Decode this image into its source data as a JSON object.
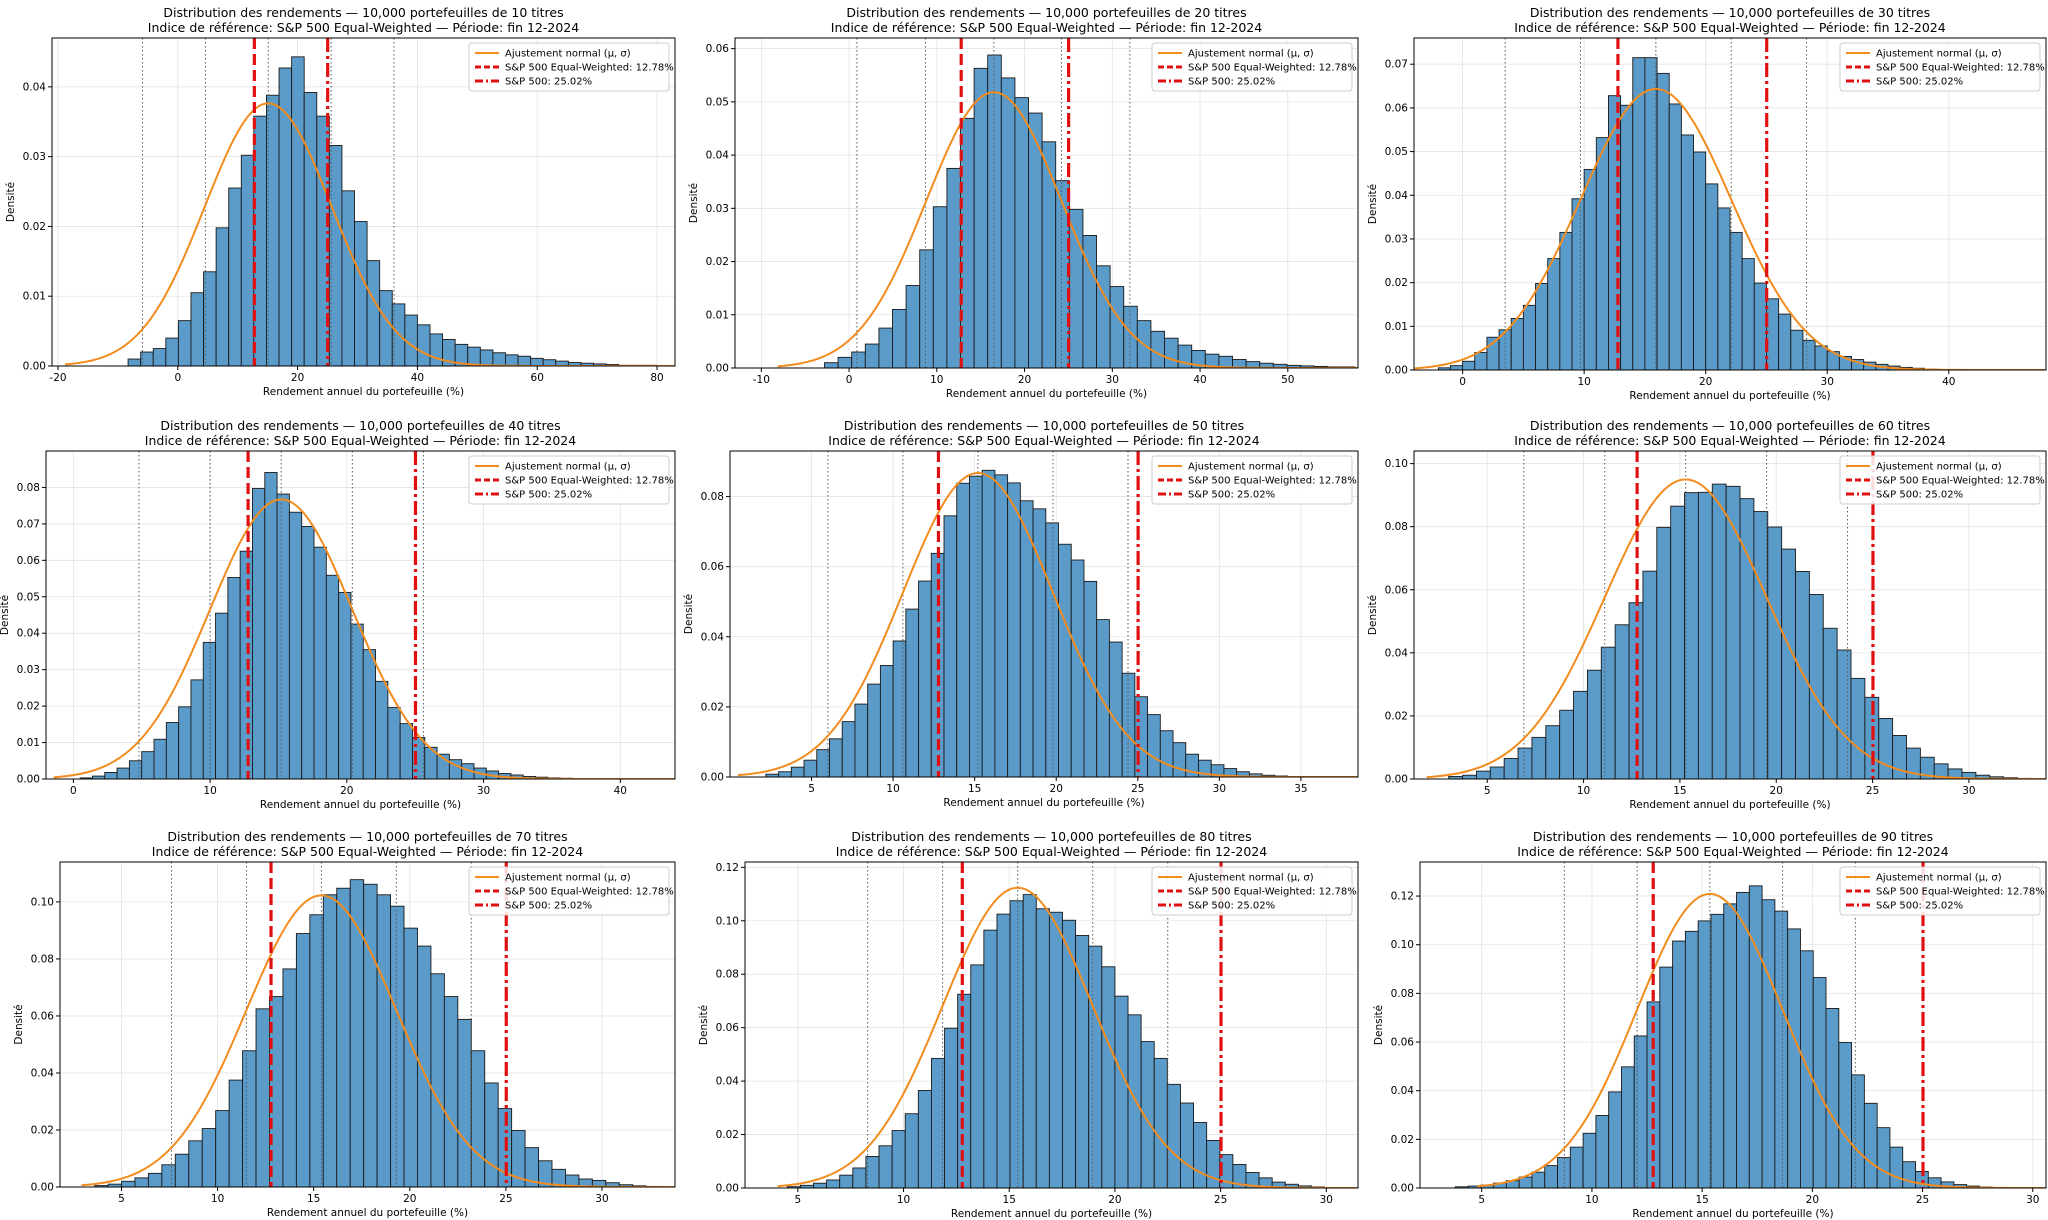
{
  "chart_data": [
    {
      "type": "bar",
      "title": "Distribution des rendements — 10,000 portefeuilles de 10 titres",
      "subtitle": "Indice de référence: S&P 500 Equal-Weighted — Période: fin 12-2024",
      "xlabel": "Rendement annuel du portefeuille (%)",
      "ylabel": "Densité",
      "xlim": [
        -21,
        83
      ],
      "ylim": [
        0,
        0.047
      ],
      "xticks": [
        -20,
        0,
        20,
        40,
        60,
        80
      ],
      "yticks": [
        0,
        0.01,
        0.02,
        0.03,
        0.04
      ],
      "grid": true,
      "legend_position": "top-right",
      "hist": {
        "bin_start": -8.3,
        "bin_width": 2.1,
        "values": [
          0.001,
          0.002,
          0.0025,
          0.004,
          0.0065,
          0.0105,
          0.0135,
          0.0198,
          0.0255,
          0.0302,
          0.0358,
          0.0388,
          0.0427,
          0.0443,
          0.0392,
          0.0358,
          0.0316,
          0.0251,
          0.0207,
          0.0151,
          0.0108,
          0.0089,
          0.0073,
          0.0059,
          0.0046,
          0.0038,
          0.0031,
          0.0027,
          0.0023,
          0.0019,
          0.0016,
          0.0014,
          0.0011,
          0.0009,
          0.0007,
          0.0005,
          0.0004,
          0.0003,
          0.0002,
          0.0001,
          0.0001,
          0.0001
        ]
      },
      "normal_fit": {
        "mu": 15.1,
        "sigma": 10.6
      },
      "sigma_lines": [
        -5.9,
        4.6,
        15.1,
        25.6,
        36.1
      ],
      "reference_lines": [
        12.78,
        25.02
      ],
      "legend": [
        "Ajustement normal (μ, σ)",
        "S&P 500 Equal-Weighted: 12.78%",
        "S&P 500: 25.02%"
      ]
    },
    {
      "type": "bar",
      "title": "Distribution des rendements — 10,000 portefeuilles de 20 titres",
      "subtitle": "Indice de référence: S&P 500 Equal-Weighted — Période: fin 12-2024",
      "xlabel": "Rendement annuel du portefeuille (%)",
      "ylabel": "Densité",
      "xlim": [
        -13,
        58
      ],
      "ylim": [
        0,
        0.062
      ],
      "xticks": [
        -10,
        0,
        10,
        20,
        30,
        40,
        50
      ],
      "yticks": [
        0,
        0.01,
        0.02,
        0.03,
        0.04,
        0.05,
        0.06
      ],
      "grid": true,
      "legend_position": "top-right",
      "hist": {
        "bin_start": -2.8,
        "bin_width": 1.55,
        "values": [
          0.001,
          0.002,
          0.003,
          0.0045,
          0.0075,
          0.011,
          0.0155,
          0.0222,
          0.0303,
          0.0375,
          0.0469,
          0.0563,
          0.0588,
          0.0545,
          0.0508,
          0.0479,
          0.0425,
          0.0352,
          0.0298,
          0.0249,
          0.0192,
          0.0153,
          0.0116,
          0.0089,
          0.0069,
          0.0056,
          0.0043,
          0.0033,
          0.0026,
          0.0022,
          0.0016,
          0.0012,
          0.0009,
          0.0007,
          0.0005,
          0.0004,
          0.0003,
          0.0002,
          0.0002,
          0.0001,
          0.0001,
          0.0001
        ]
      },
      "normal_fit": {
        "mu": 16.5,
        "sigma": 7.7
      },
      "sigma_lines": [
        0.9,
        8.7,
        16.5,
        24.2,
        32.0
      ],
      "reference_lines": [
        12.78,
        25.02
      ],
      "legend": [
        "Ajustement normal (μ, σ)",
        "S&P 500 Equal-Weighted: 12.78%",
        "S&P 500: 25.02%"
      ]
    },
    {
      "type": "bar",
      "title": "Distribution des rendements — 10,000 portefeuilles de 30 titres",
      "subtitle": "Indice de référence: S&P 500 Equal-Weighted — Période: fin 12-2024",
      "xlabel": "Rendement annuel du portefeuille (%)",
      "ylabel": "Densité",
      "xlim": [
        -4,
        48
      ],
      "ylim": [
        0,
        0.076
      ],
      "xticks": [
        0,
        10,
        20,
        30,
        40
      ],
      "yticks": [
        0,
        0.01,
        0.02,
        0.03,
        0.04,
        0.05,
        0.06,
        0.07
      ],
      "grid": true,
      "legend_position": "top-right",
      "hist": {
        "bin_start": -2.0,
        "bin_width": 1.0,
        "values": [
          0.0005,
          0.001,
          0.002,
          0.004,
          0.0075,
          0.0092,
          0.0118,
          0.0148,
          0.0198,
          0.0255,
          0.0315,
          0.0392,
          0.0459,
          0.0532,
          0.0628,
          0.0606,
          0.0715,
          0.0715,
          0.0679,
          0.0609,
          0.0538,
          0.0499,
          0.0426,
          0.0371,
          0.0315,
          0.0255,
          0.0199,
          0.0163,
          0.0128,
          0.0091,
          0.0068,
          0.0055,
          0.0042,
          0.0031,
          0.0024,
          0.0018,
          0.0013,
          0.0009,
          0.0006,
          0.0004,
          0.0002,
          0.0001
        ]
      },
      "normal_fit": {
        "mu": 15.9,
        "sigma": 6.2
      },
      "sigma_lines": [
        3.5,
        9.7,
        15.9,
        22.1,
        28.3
      ],
      "reference_lines": [
        12.78,
        25.02
      ],
      "legend": [
        "Ajustement normal (μ, σ)",
        "S&P 500 Equal-Weighted: 12.78%",
        "S&P 500: 25.02%"
      ]
    },
    {
      "type": "bar",
      "title": "Distribution des rendements — 10,000 portefeuilles de 40 titres",
      "subtitle": "Indice de référence: S&P 500 Equal-Weighted — Période: fin 12-2024",
      "xlabel": "Rendement annuel du portefeuille (%)",
      "ylabel": "Densité",
      "xlim": [
        -2,
        44
      ],
      "ylim": [
        0,
        0.09
      ],
      "xticks": [
        0,
        10,
        20,
        30,
        40
      ],
      "yticks": [
        0,
        0.01,
        0.02,
        0.03,
        0.04,
        0.05,
        0.06,
        0.07,
        0.08
      ],
      "grid": true,
      "legend_position": "top-right",
      "hist": {
        "bin_start": 0.5,
        "bin_width": 0.9,
        "values": [
          0.0003,
          0.0008,
          0.0018,
          0.003,
          0.005,
          0.0075,
          0.0109,
          0.0155,
          0.0198,
          0.0272,
          0.0375,
          0.0455,
          0.0553,
          0.0625,
          0.0797,
          0.0841,
          0.0782,
          0.0732,
          0.0693,
          0.0636,
          0.0559,
          0.0512,
          0.0425,
          0.0355,
          0.0268,
          0.0196,
          0.0152,
          0.0114,
          0.0087,
          0.0068,
          0.0053,
          0.0042,
          0.003,
          0.0022,
          0.0015,
          0.0011,
          0.0007,
          0.0005,
          0.0003,
          0.0002,
          0.0001,
          0.0001
        ]
      },
      "normal_fit": {
        "mu": 15.2,
        "sigma": 5.2
      },
      "sigma_lines": [
        4.8,
        10.0,
        15.2,
        20.4,
        25.6
      ],
      "reference_lines": [
        12.78,
        25.02
      ],
      "legend": [
        "Ajustement normal (μ, σ)",
        "S&P 500 Equal-Weighted: 12.78%",
        "S&P 500: 25.02%"
      ]
    },
    {
      "type": "bar",
      "title": "Distribution des rendements — 10,000 portefeuilles de 50 titres",
      "subtitle": "Indice de référence: S&P 500 Equal-Weighted — Période: fin 12-2024",
      "xlabel": "Rendement annuel du portefeuille (%)",
      "ylabel": "Densité",
      "xlim": [
        0,
        38.5
      ],
      "ylim": [
        0,
        0.093
      ],
      "xticks": [
        5,
        10,
        15,
        20,
        25,
        30,
        35
      ],
      "yticks": [
        0,
        0.02,
        0.04,
        0.06,
        0.08
      ],
      "grid": true,
      "legend_position": "top-right",
      "hist": {
        "bin_start": 2.2,
        "bin_width": 0.78,
        "values": [
          0.0008,
          0.0015,
          0.0028,
          0.0048,
          0.0078,
          0.0109,
          0.0158,
          0.0208,
          0.0265,
          0.0318,
          0.0388,
          0.0479,
          0.0559,
          0.0638,
          0.0745,
          0.0838,
          0.0858,
          0.0875,
          0.0862,
          0.0839,
          0.0788,
          0.0765,
          0.0725,
          0.0664,
          0.0619,
          0.0558,
          0.0449,
          0.0385,
          0.0296,
          0.0229,
          0.0178,
          0.0132,
          0.0098,
          0.0065,
          0.0048,
          0.0035,
          0.0024,
          0.0015,
          0.0009,
          0.0005,
          0.0003,
          0.0001
        ]
      },
      "normal_fit": {
        "mu": 15.2,
        "sigma": 4.6
      },
      "sigma_lines": [
        6.0,
        10.6,
        15.2,
        19.8,
        24.4
      ],
      "reference_lines": [
        12.78,
        25.02
      ],
      "legend": [
        "Ajustement normal (μ, σ)",
        "S&P 500 Equal-Weighted: 12.78%",
        "S&P 500: 25.02%"
      ]
    },
    {
      "type": "bar",
      "title": "Distribution des rendements — 10,000 portefeuilles de 60 titres",
      "subtitle": "Indice de référence: S&P 500 Equal-Weighted — Période: fin 12-2024",
      "xlabel": "Rendement annuel du portefeuille (%)",
      "ylabel": "Densité",
      "xlim": [
        1.2,
        34
      ],
      "ylim": [
        0,
        0.104
      ],
      "xticks": [
        5,
        10,
        15,
        20,
        25,
        30
      ],
      "yticks": [
        0,
        0.02,
        0.04,
        0.06,
        0.08,
        0.1
      ],
      "grid": true,
      "legend_position": "top-right",
      "hist": {
        "bin_start": 3.0,
        "bin_width": 0.72,
        "values": [
          0.0008,
          0.0012,
          0.0025,
          0.0038,
          0.0065,
          0.0098,
          0.0132,
          0.0169,
          0.0218,
          0.0278,
          0.0345,
          0.0418,
          0.0489,
          0.0559,
          0.0659,
          0.0798,
          0.0865,
          0.0908,
          0.0909,
          0.0935,
          0.0928,
          0.0889,
          0.0848,
          0.0799,
          0.0729,
          0.0658,
          0.0585,
          0.0478,
          0.0409,
          0.0319,
          0.0259,
          0.0192,
          0.0138,
          0.0098,
          0.0069,
          0.0048,
          0.0032,
          0.0021,
          0.0012,
          0.0007,
          0.0004,
          0.0002
        ]
      },
      "normal_fit": {
        "mu": 15.3,
        "sigma": 4.2
      },
      "sigma_lines": [
        6.9,
        11.1,
        15.3,
        19.5,
        23.7
      ],
      "reference_lines": [
        12.78,
        25.02
      ],
      "legend": [
        "Ajustement normal (μ, σ)",
        "S&P 500 Equal-Weighted: 12.78%",
        "S&P 500: 25.02%"
      ]
    },
    {
      "type": "bar",
      "title": "Distribution des rendements — 10,000 portefeuilles de 70 titres",
      "subtitle": "Indice de référence: S&P 500 Equal-Weighted — Période: fin 12-2024",
      "xlabel": "Rendement annuel du portefeuille (%)",
      "ylabel": "Densité",
      "xlim": [
        1.8,
        33.8
      ],
      "ylim": [
        0,
        0.114
      ],
      "xticks": [
        5,
        10,
        15,
        20,
        25,
        30
      ],
      "yticks": [
        0,
        0.02,
        0.04,
        0.06,
        0.08,
        0.1
      ],
      "grid": true,
      "legend_position": "top-right",
      "hist": {
        "bin_start": 3.6,
        "bin_width": 0.7,
        "values": [
          0.0005,
          0.001,
          0.002,
          0.0032,
          0.0048,
          0.0078,
          0.0115,
          0.0162,
          0.0205,
          0.0268,
          0.0375,
          0.0478,
          0.0625,
          0.0668,
          0.0765,
          0.0889,
          0.0955,
          0.1025,
          0.1048,
          0.1078,
          0.1062,
          0.1025,
          0.0985,
          0.0908,
          0.0845,
          0.0748,
          0.0668,
          0.0588,
          0.0478,
          0.0365,
          0.0275,
          0.0198,
          0.0138,
          0.0092,
          0.0062,
          0.0042,
          0.0028,
          0.0023,
          0.0015,
          0.0008,
          0.0004,
          0.0002
        ]
      },
      "normal_fit": {
        "mu": 15.4,
        "sigma": 3.9
      },
      "sigma_lines": [
        7.6,
        11.5,
        15.4,
        19.3,
        23.2
      ],
      "reference_lines": [
        12.78,
        25.02
      ],
      "legend": [
        "Ajustement normal (μ, σ)",
        "S&P 500 Equal-Weighted: 12.78%",
        "S&P 500: 25.02%"
      ]
    },
    {
      "type": "bar",
      "title": "Distribution des rendements — 10,000 portefeuilles de 80 titres",
      "subtitle": "Indice de référence: S&P 500 Equal-Weighted — Période: fin 12-2024",
      "xlabel": "Rendement annuel du portefeuille (%)",
      "ylabel": "Densité",
      "xlim": [
        2.5,
        31.5
      ],
      "ylim": [
        0,
        0.122
      ],
      "xticks": [
        5,
        10,
        15,
        20,
        25,
        30
      ],
      "yticks": [
        0,
        0.02,
        0.04,
        0.06,
        0.08,
        0.1,
        0.12
      ],
      "grid": true,
      "legend_position": "top-right",
      "hist": {
        "bin_start": 4.5,
        "bin_width": 0.62,
        "values": [
          0.0005,
          0.001,
          0.0018,
          0.003,
          0.0048,
          0.0075,
          0.0118,
          0.0158,
          0.0215,
          0.0278,
          0.0365,
          0.0485,
          0.0598,
          0.0725,
          0.0835,
          0.0965,
          0.1025,
          0.1075,
          0.1098,
          0.1045,
          0.1032,
          0.1002,
          0.0945,
          0.0905,
          0.0828,
          0.0718,
          0.0648,
          0.0548,
          0.0485,
          0.0388,
          0.0318,
          0.0245,
          0.0178,
          0.0125,
          0.0088,
          0.0058,
          0.0038,
          0.0022,
          0.0014,
          0.0008,
          0.0004,
          0.0002
        ]
      },
      "normal_fit": {
        "mu": 15.4,
        "sigma": 3.55
      },
      "sigma_lines": [
        8.3,
        11.85,
        15.4,
        18.95,
        22.5
      ],
      "reference_lines": [
        12.78,
        25.02
      ],
      "legend": [
        "Ajustement normal (μ, σ)",
        "S&P 500 Equal-Weighted: 12.78%",
        "S&P 500: 25.02%"
      ]
    },
    {
      "type": "bar",
      "title": "Distribution des rendements — 10,000 portefeuilles de 90 titres",
      "subtitle": "Indice de référence: S&P 500 Equal-Weighted — Période: fin 12-2024",
      "xlabel": "Rendement annuel du portefeuille (%)",
      "ylabel": "Densité",
      "xlim": [
        2.2,
        30.6
      ],
      "ylim": [
        0,
        0.134
      ],
      "xticks": [
        5,
        10,
        15,
        20,
        25,
        30
      ],
      "yticks": [
        0,
        0.02,
        0.04,
        0.06,
        0.08,
        0.1,
        0.12
      ],
      "grid": true,
      "legend_position": "top-right",
      "hist": {
        "bin_start": 3.8,
        "bin_width": 0.58,
        "values": [
          0.0005,
          0.0008,
          0.0012,
          0.002,
          0.003,
          0.0045,
          0.0065,
          0.0092,
          0.0125,
          0.0168,
          0.0225,
          0.0298,
          0.0395,
          0.0498,
          0.0625,
          0.0765,
          0.0908,
          0.1015,
          0.1055,
          0.1098,
          0.1125,
          0.1168,
          0.1215,
          0.1242,
          0.1185,
          0.1138,
          0.1065,
          0.0975,
          0.0865,
          0.0738,
          0.0598,
          0.0465,
          0.0348,
          0.0248,
          0.0168,
          0.0108,
          0.0068,
          0.0042,
          0.0025,
          0.0014,
          0.0008,
          0.0004
        ]
      },
      "normal_fit": {
        "mu": 15.35,
        "sigma": 3.3
      },
      "sigma_lines": [
        8.75,
        12.05,
        15.35,
        18.65,
        21.95
      ],
      "reference_lines": [
        12.78,
        25.02
      ],
      "legend": [
        "Ajustement normal (μ, σ)",
        "S&P 500 Equal-Weighted: 12.78%",
        "S&P 500: 25.02%"
      ]
    }
  ]
}
